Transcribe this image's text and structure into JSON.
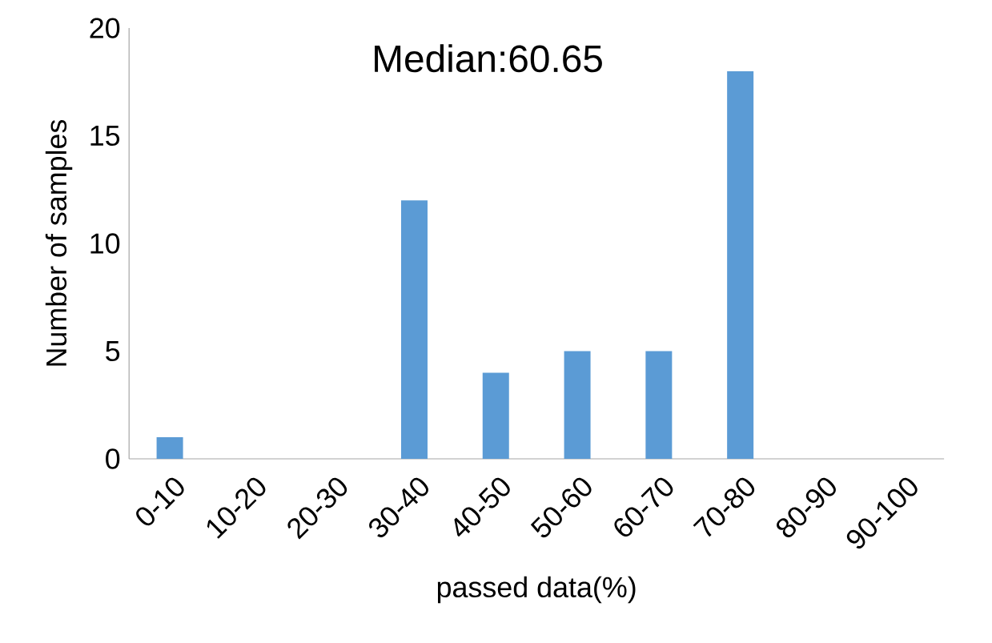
{
  "chart_data": {
    "type": "bar",
    "annotations": [
      "Median:60.65"
    ],
    "xlabel": "passed data(%)",
    "ylabel": "Number of samples",
    "categories": [
      "0-10",
      "10-20",
      "20-30",
      "30-40",
      "40-50",
      "50-60",
      "60-70",
      "70-80",
      "80-90",
      "90-100"
    ],
    "values": [
      1,
      0,
      0,
      12,
      4,
      5,
      5,
      18,
      0,
      0
    ],
    "color": "#5b9bd5",
    "ylim": [
      0,
      20
    ],
    "yticks": [
      0,
      5,
      10,
      15,
      20
    ]
  }
}
